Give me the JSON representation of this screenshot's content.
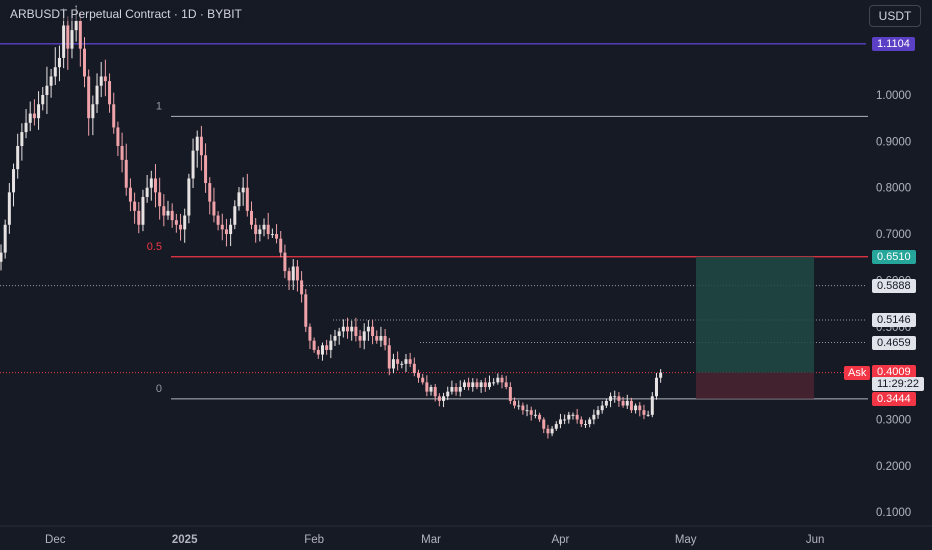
{
  "header": {
    "title": "ARBUSDT Perpetual Contract · 1D · BYBIT"
  },
  "toolbar": {
    "currency_label": "USDT"
  },
  "colors": {
    "background": "#161a25",
    "up": "#e8e3e3",
    "down": "#f0a2a9",
    "red_line": "#f23645",
    "purple_line": "#5b3fc4",
    "profit_zone": "#1f4a45",
    "loss_zone": "#4a2530",
    "text": "#b2b5be"
  },
  "fib": {
    "levels": [
      "1",
      "0.5",
      "0"
    ]
  },
  "countdown": "11:29:22",
  "ask_label": "Ask",
  "price_tags": [
    {
      "value": "1.1104",
      "bg": "#5b3fc4",
      "fg": "#ffffff"
    },
    {
      "value": "0.6510",
      "bg": "#26a69a",
      "fg": "#ffffff"
    },
    {
      "value": "0.5888",
      "bg": "#e1e3eb",
      "fg": "#131722"
    },
    {
      "value": "0.5146",
      "bg": "#e1e3eb",
      "fg": "#131722"
    },
    {
      "value": "0.4659",
      "bg": "#e1e3eb",
      "fg": "#131722"
    },
    {
      "value": "0.4009",
      "bg": "#f23645",
      "fg": "#ffffff"
    },
    {
      "value": "0.3444",
      "bg": "#f23645",
      "fg": "#ffffff"
    }
  ],
  "chart_data": {
    "type": "candlestick",
    "title": "ARBUSDT Perpetual Contract · 1D · BYBIT",
    "y_axis": {
      "ticks": [
        "1.0000",
        "0.9000",
        "0.8000",
        "0.7000",
        "0.6000",
        "0.5000",
        "0.4000",
        "0.3000",
        "0.2000",
        "0.1000"
      ],
      "range": [
        0.06,
        1.18
      ]
    },
    "x_axis": {
      "ticks": [
        "Dec",
        "2025",
        "Feb",
        "Mar",
        "Apr",
        "May",
        "Jun"
      ],
      "range": [
        "2024-11-18",
        "2025-06-10"
      ]
    },
    "series": [
      {
        "date_start": "2024-11-18",
        "interval": "1D",
        "closes": [
          0.66,
          0.72,
          0.79,
          0.84,
          0.89,
          0.92,
          0.94,
          0.96,
          0.95,
          0.98,
          1.0,
          1.02,
          1.04,
          1.06,
          1.08,
          1.15,
          1.1,
          1.14,
          1.16,
          1.1,
          1.04,
          0.95,
          0.98,
          1.02,
          1.04,
          1.03,
          0.98,
          0.93,
          0.89,
          0.86,
          0.8,
          0.77,
          0.75,
          0.72,
          0.78,
          0.8,
          0.82,
          0.79,
          0.76,
          0.74,
          0.75,
          0.73,
          0.72,
          0.71,
          0.74,
          0.82,
          0.88,
          0.91,
          0.87,
          0.81,
          0.77,
          0.74,
          0.72,
          0.71,
          0.7,
          0.72,
          0.76,
          0.79,
          0.8,
          0.75,
          0.72,
          0.7,
          0.71,
          0.72,
          0.7,
          0.7,
          0.69,
          0.66,
          0.62,
          0.6,
          0.63,
          0.6,
          0.57,
          0.5,
          0.47,
          0.45,
          0.44,
          0.46,
          0.45,
          0.47,
          0.48,
          0.49,
          0.5,
          0.49,
          0.5,
          0.48,
          0.47,
          0.49,
          0.5,
          0.48,
          0.47,
          0.48,
          0.46,
          0.41,
          0.43,
          0.42,
          0.42,
          0.43,
          0.42,
          0.4,
          0.39,
          0.38,
          0.36,
          0.37,
          0.35,
          0.34,
          0.35,
          0.36,
          0.37,
          0.36,
          0.37,
          0.38,
          0.37,
          0.38,
          0.37,
          0.38,
          0.37,
          0.38,
          0.38,
          0.39,
          0.38,
          0.37,
          0.34,
          0.33,
          0.33,
          0.32,
          0.32,
          0.31,
          0.31,
          0.3,
          0.28,
          0.27,
          0.28,
          0.29,
          0.3,
          0.3,
          0.31,
          0.31,
          0.3,
          0.29,
          0.29,
          0.3,
          0.31,
          0.32,
          0.33,
          0.34,
          0.35,
          0.35,
          0.34,
          0.33,
          0.34,
          0.32,
          0.33,
          0.32,
          0.31,
          0.31,
          0.35,
          0.39,
          0.401
        ]
      }
    ],
    "horizontal_lines": [
      {
        "value": 1.1104,
        "style": "solid",
        "color": "#5b3fc4"
      },
      {
        "value": 0.954,
        "style": "solid",
        "color": "#b2b5be",
        "label": "1"
      },
      {
        "value": 0.651,
        "style": "solid",
        "color": "#f23645",
        "label": "0.5"
      },
      {
        "value": 0.5888,
        "style": "dotted"
      },
      {
        "value": 0.5146,
        "style": "dotted"
      },
      {
        "value": 0.4659,
        "style": "dotted"
      },
      {
        "value": 0.4009,
        "style": "dotted",
        "color": "#f23645"
      },
      {
        "value": 0.3444,
        "style": "solid",
        "color": "#b2b5be",
        "label": "0"
      }
    ],
    "position": {
      "entry": 0.4009,
      "target": 0.651,
      "stop": 0.3444,
      "start_date": "2025-05-13",
      "end_date": "2025-06-03"
    }
  }
}
